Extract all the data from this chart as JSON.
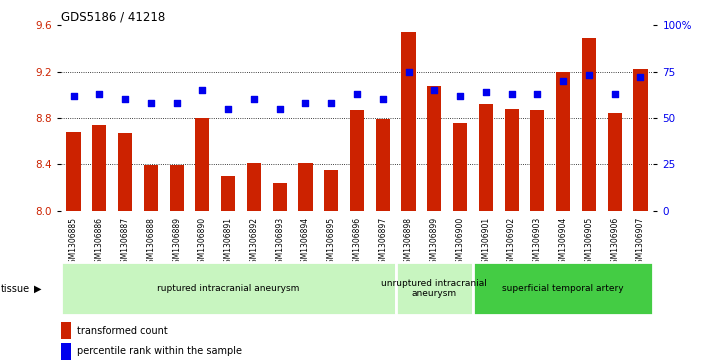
{
  "title": "GDS5186 / 41218",
  "samples": [
    "GSM1306885",
    "GSM1306886",
    "GSM1306887",
    "GSM1306888",
    "GSM1306889",
    "GSM1306890",
    "GSM1306891",
    "GSM1306892",
    "GSM1306893",
    "GSM1306894",
    "GSM1306895",
    "GSM1306896",
    "GSM1306897",
    "GSM1306898",
    "GSM1306899",
    "GSM1306900",
    "GSM1306901",
    "GSM1306902",
    "GSM1306903",
    "GSM1306904",
    "GSM1306905",
    "GSM1306906",
    "GSM1306907"
  ],
  "bar_values": [
    8.68,
    8.74,
    8.67,
    8.39,
    8.39,
    8.8,
    8.3,
    8.41,
    8.24,
    8.41,
    8.35,
    8.87,
    8.79,
    9.54,
    9.08,
    8.76,
    8.92,
    8.88,
    8.87,
    9.2,
    9.49,
    8.84,
    9.22
  ],
  "percentile_values": [
    62,
    63,
    60,
    58,
    58,
    65,
    55,
    60,
    55,
    58,
    58,
    63,
    60,
    75,
    65,
    62,
    64,
    63,
    63,
    70,
    73,
    63,
    72
  ],
  "group_configs": [
    {
      "label": "ruptured intracranial aneurysm",
      "start": 0,
      "end": 13,
      "color": "#c8f5c0"
    },
    {
      "label": "unruptured intracranial\naneurysm",
      "start": 13,
      "end": 16,
      "color": "#c8f5c0"
    },
    {
      "label": "superficial temporal artery",
      "start": 16,
      "end": 23,
      "color": "#44cc44"
    }
  ],
  "bar_color": "#cc2200",
  "dot_color": "#0000ee",
  "ylim_left": [
    8.0,
    9.6
  ],
  "ylim_right": [
    0,
    100
  ],
  "yticks_left": [
    8.0,
    8.4,
    8.8,
    9.2,
    9.6
  ],
  "yticks_right": [
    0,
    25,
    50,
    75,
    100
  ],
  "ytick_labels_right": [
    "0",
    "25",
    "50",
    "75",
    "100%"
  ],
  "grid_lines": [
    8.4,
    8.8,
    9.2
  ],
  "legend_items": [
    {
      "label": "transformed count",
      "color": "#cc2200"
    },
    {
      "label": "percentile rank within the sample",
      "color": "#0000ee"
    }
  ],
  "tissue_label": "tissue",
  "bg_color": "#ffffff",
  "plot_bg": "#ffffff"
}
